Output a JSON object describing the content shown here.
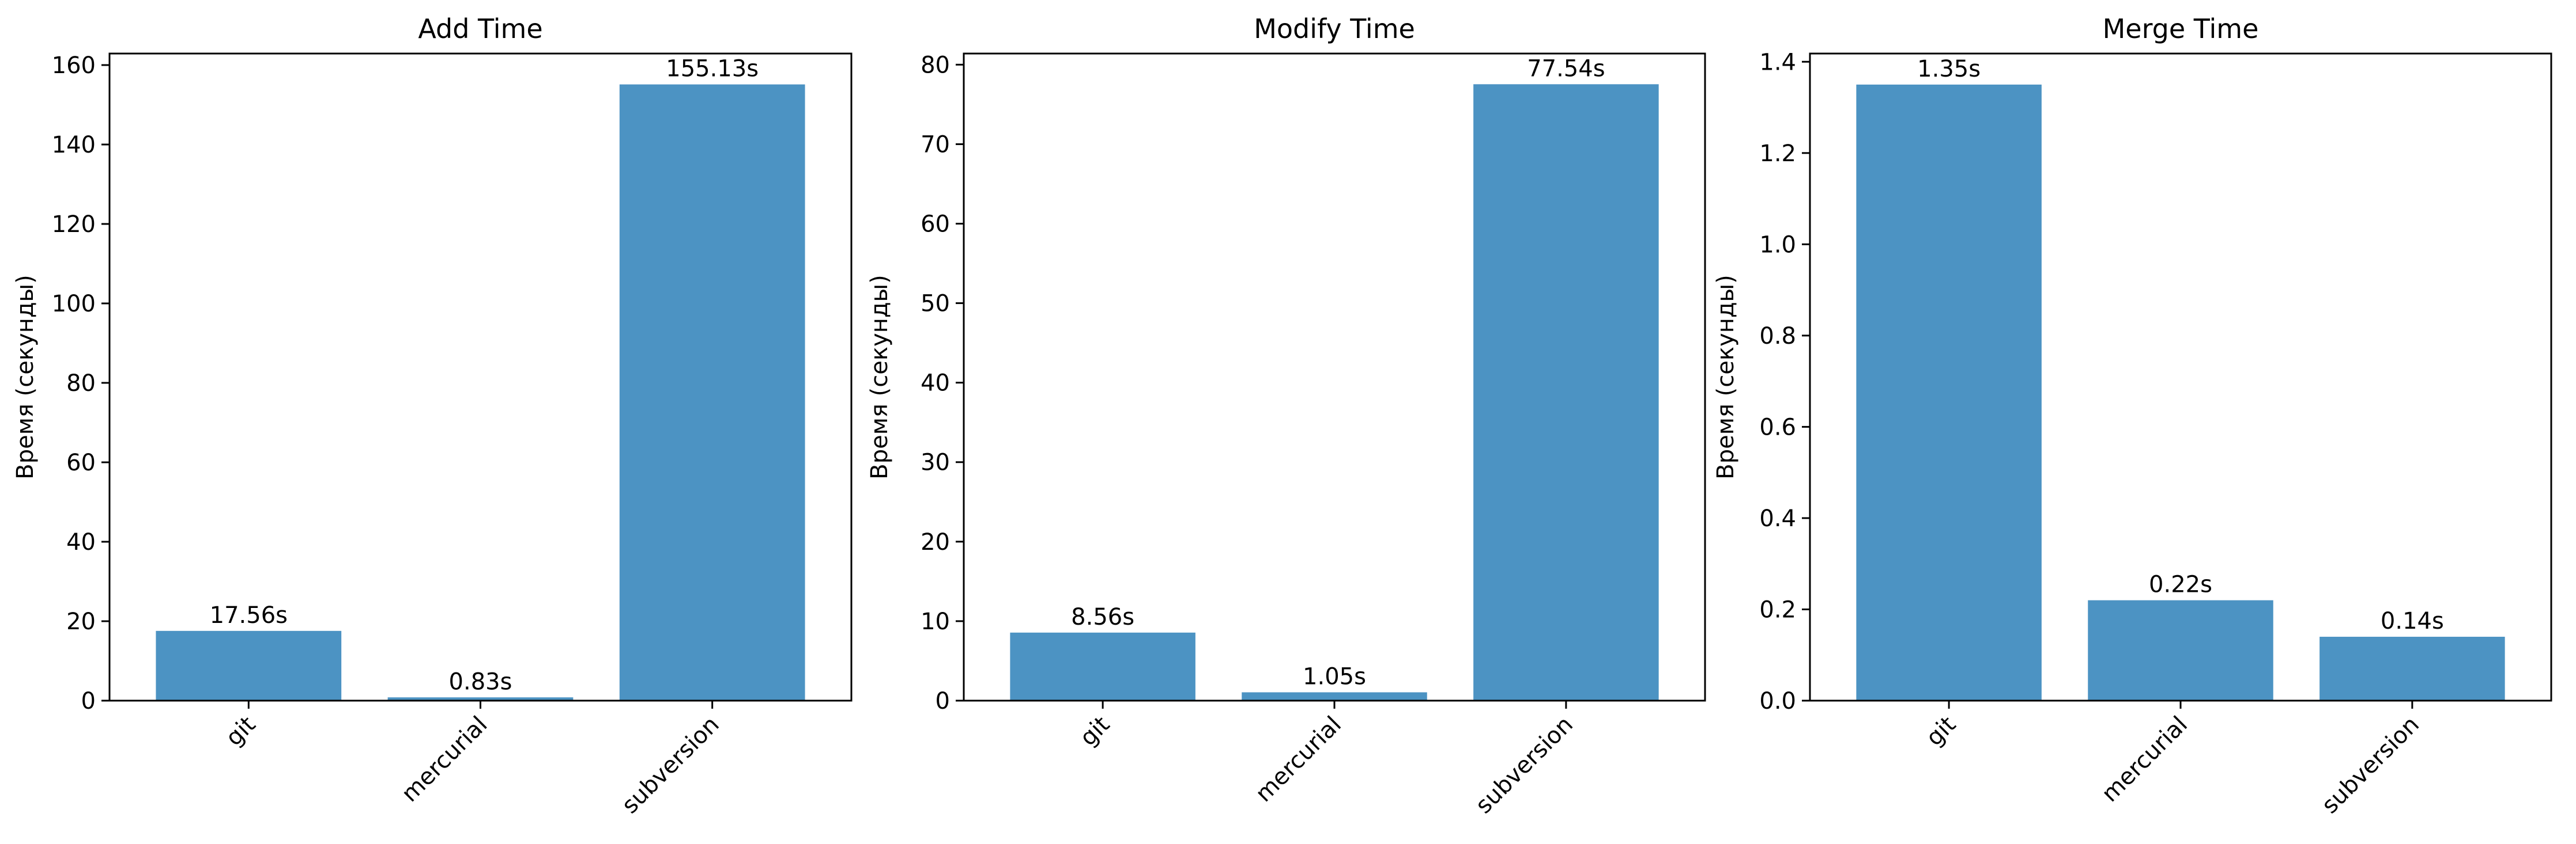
{
  "chart_data": [
    {
      "type": "bar",
      "title": "Add Time",
      "ylabel": "Время (секунды)",
      "xlabel": "",
      "categories": [
        "git",
        "mercurial",
        "subversion"
      ],
      "values": [
        17.56,
        0.83,
        155.13
      ],
      "data_labels": [
        "17.56s",
        "0.83s",
        "155.13s"
      ],
      "ylim": [
        0,
        162.9
      ],
      "yticks": [
        0,
        20,
        40,
        60,
        80,
        100,
        120,
        140,
        160
      ],
      "ytick_labels": [
        "0",
        "20",
        "40",
        "60",
        "80",
        "100",
        "120",
        "140",
        "160"
      ],
      "bar_color": "#4c93c3",
      "grid": false
    },
    {
      "type": "bar",
      "title": "Modify Time",
      "ylabel": "Время (секунды)",
      "xlabel": "",
      "categories": [
        "git",
        "mercurial",
        "subversion"
      ],
      "values": [
        8.56,
        1.05,
        77.54
      ],
      "data_labels": [
        "8.56s",
        "1.05s",
        "77.54s"
      ],
      "ylim": [
        0,
        81.4
      ],
      "yticks": [
        0,
        10,
        20,
        30,
        40,
        50,
        60,
        70,
        80
      ],
      "ytick_labels": [
        "0",
        "10",
        "20",
        "30",
        "40",
        "50",
        "60",
        "70",
        "80"
      ],
      "bar_color": "#4c93c3",
      "grid": false
    },
    {
      "type": "bar",
      "title": "Merge Time",
      "ylabel": "Время (секунды)",
      "xlabel": "",
      "categories": [
        "git",
        "mercurial",
        "subversion"
      ],
      "values": [
        1.35,
        0.22,
        0.14
      ],
      "data_labels": [
        "1.35s",
        "0.22s",
        "0.14s"
      ],
      "ylim": [
        0,
        1.418
      ],
      "yticks": [
        0,
        0.2,
        0.4,
        0.6,
        0.8,
        1.0,
        1.2,
        1.4
      ],
      "ytick_labels": [
        "0.0",
        "0.2",
        "0.4",
        "0.6",
        "0.8",
        "1.0",
        "1.2",
        "1.4"
      ],
      "bar_color": "#4c93c3",
      "grid": false
    }
  ]
}
